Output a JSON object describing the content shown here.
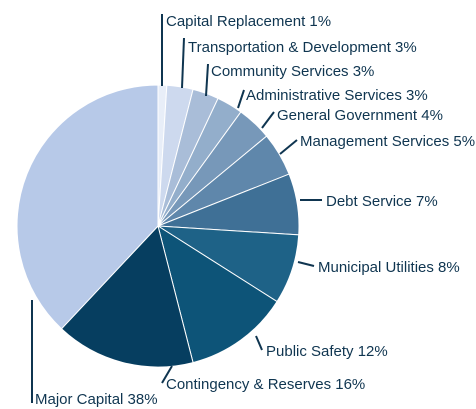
{
  "chart_data": {
    "type": "pie",
    "categories": [
      "Capital Replacement",
      "Transportation & Development",
      "Community Services",
      "Administrative Services",
      "General Government",
      "Management Services",
      "Debt Service",
      "Municipal Utilities",
      "Public Safety",
      "Contingency & Reserves",
      "Major Capital"
    ],
    "values": [
      1,
      3,
      3,
      3,
      4,
      5,
      7,
      8,
      12,
      16,
      38
    ],
    "labels": [
      "Capital Replacement 1%",
      "Transportation & Development 3%",
      "Community Services 3%",
      "Administrative Services 3%",
      "General Government 4%",
      "Management Services 5%",
      "Debt Service 7%",
      "Municipal Utilities 8%",
      "Public Safety 12%",
      "Contingency & Reserves 16%",
      "Major Capital 38%"
    ],
    "colors": [
      "#e8eef8",
      "#cdd9ee",
      "#a9bdd8",
      "#93aecb",
      "#7798b9",
      "#5f87ab",
      "#3f7096",
      "#1e6287",
      "#0d5478",
      "#063e60",
      "#b7c9e8"
    ],
    "start_angle_deg": 0,
    "direction": "clockwise",
    "legend": "none"
  }
}
